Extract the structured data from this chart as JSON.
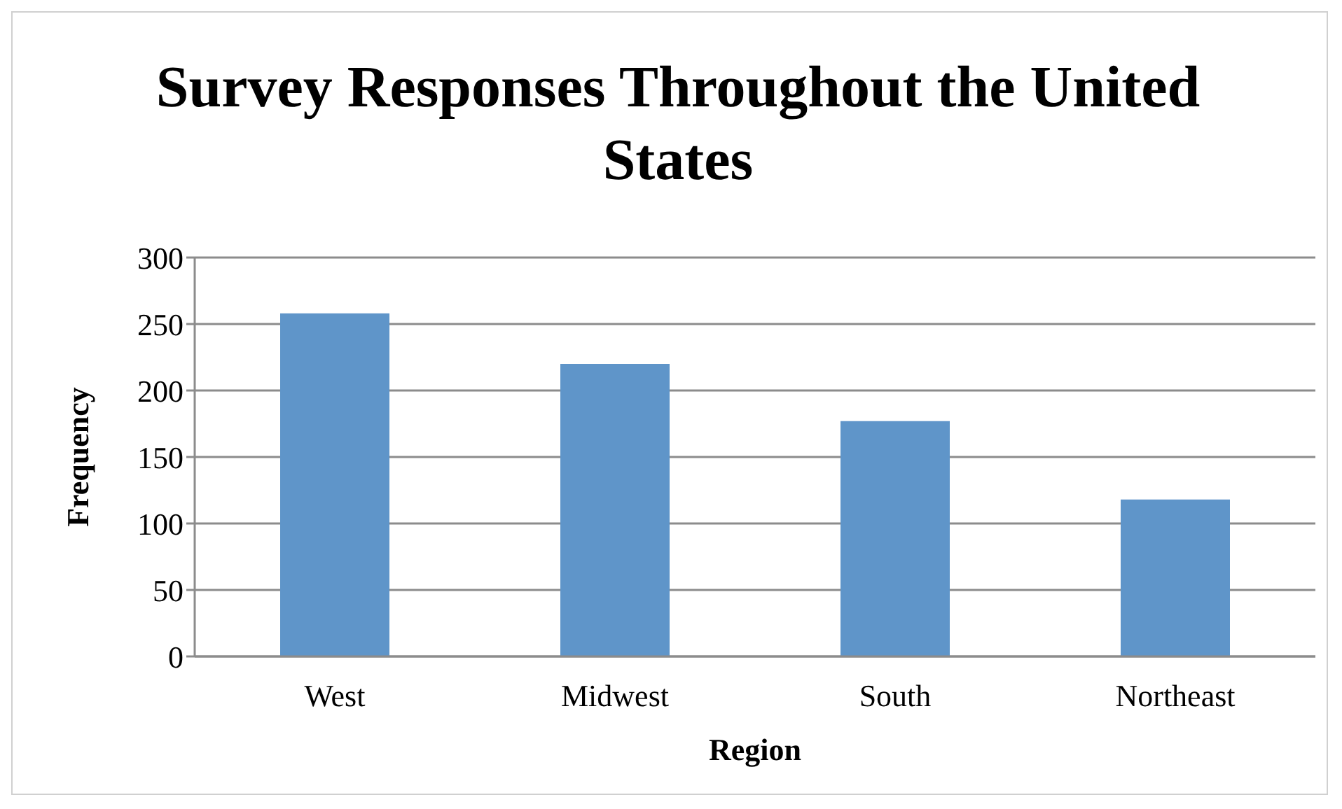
{
  "chart_data": {
    "type": "bar",
    "title": "Survey Responses Throughout the United States",
    "xlabel": "Region",
    "ylabel": "Frequency",
    "categories": [
      "West",
      "Midwest",
      "South",
      "Northeast"
    ],
    "values": [
      258,
      220,
      177,
      118
    ],
    "color": "#5f95c9",
    "ylim": [
      0,
      300
    ],
    "yticks": [
      0,
      50,
      100,
      150,
      200,
      250,
      300
    ],
    "grid": "y",
    "legend": false
  }
}
